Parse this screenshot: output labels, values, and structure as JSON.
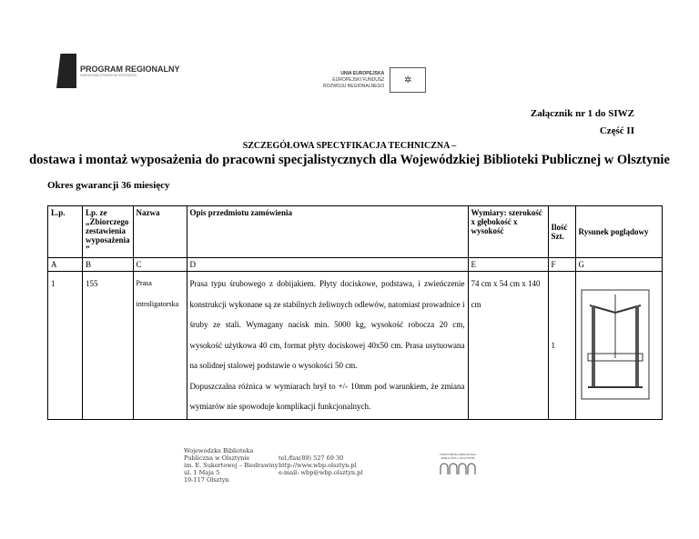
{
  "logos": {
    "program": "PROGRAM REGIONALNY",
    "program_sub": "NARODOWA STRATEGIA SPÓJNOŚCI",
    "eu_lines": [
      "UNIA EUROPEJSKA",
      "EUROPEJSKI FUNDUSZ",
      "ROZWOJU REGIONALNEGO"
    ]
  },
  "header": {
    "annex": "Załącznik nr 1 do SIWZ",
    "part": "Część II",
    "spec": "SZCZEGÓŁOWA SPECYFIKACJA TECHNICZNA –",
    "title": "dostawa i montaż wyposażenia do pracowni specjalistycznych dla Wojewódzkiej Biblioteki Publicznej w Olsztynie",
    "warranty": "Okres gwarancji 36 miesięcy"
  },
  "table": {
    "headers": [
      "L.p.",
      "Lp. ze „Zbiorczego zestawienia wyposażenia ”",
      "Nazwa",
      "Opis przedmiotu zamówienia",
      "Wymiary: szerokość x głębokość x wysokość",
      "Ilość Szt.",
      "Rysunek poglądowy"
    ],
    "letters": [
      "A",
      "B",
      "C",
      "D",
      "E",
      "F",
      "G"
    ],
    "rows": [
      {
        "lp": "1",
        "ref": "155",
        "name": "Prasa introligatorska",
        "desc": "Prasa typu śrubowego z dobijakiem. Płyty dociskowe, podstawa, i zwieńczenie konstrukcji wykonane są ze stabilnych żeliwnych odlewów, natomiast prowadnice i śruby ze stali. Wymagany nacisk min. 5000 kg, wysokość robocza 20 cm, wysokość użytkowa 40 cm, format płyty dociskowej 40x50 cm. Prasa usytuowana na solidnej stalowej podstawie o wysokości 50 cm.",
        "desc2": "Dopuszczalna różnica w wymiarach brył to +/- 10mm pod warunkiem, że zmiana wymiarów nie spowoduje komplikacji funkcjonalnych.",
        "dims": "74 cm x 54 cm x 140 cm",
        "qty": "1"
      }
    ]
  },
  "footer": {
    "address": [
      "Wojewódzka Biblioteka",
      "Publiczna w Olsztynie",
      "im. E. Sukertowej – Biedrawiny",
      "ul. 1 Maja 5",
      "10-117 Olsztyn"
    ],
    "contact": [
      "tel./fax(89) 527 69 30",
      "http://www.wbp.olsztyn.pl",
      "e-mail: wbp@wbp.olsztyn.pl"
    ],
    "logo_text": "WOJEWÓDZKA BIBLIOTEKA PUBLICZNA w OLSZTYNIE"
  }
}
